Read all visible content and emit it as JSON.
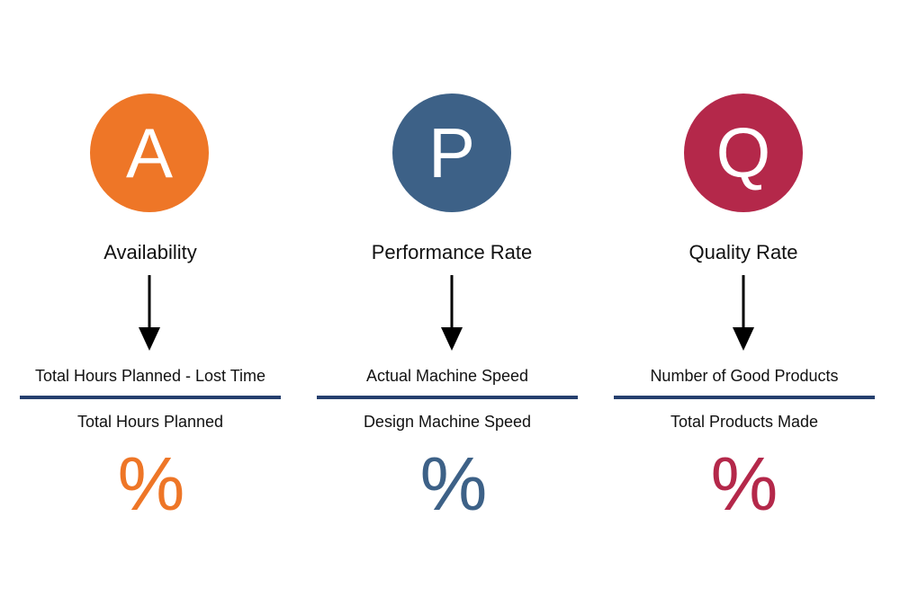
{
  "metrics": [
    {
      "letter": "A",
      "title": "Availability",
      "numerator": "Total Hours Planned - Lost Time",
      "denominator": "Total Hours Planned",
      "percent": "%",
      "color": "#ee7627"
    },
    {
      "letter": "P",
      "title": "Performance Rate",
      "numerator": "Actual Machine Speed",
      "denominator": "Design Machine Speed",
      "percent": "%",
      "color": "#3d6187"
    },
    {
      "letter": "Q",
      "title": "Quality Rate",
      "numerator": "Number of Good Products",
      "denominator": "Total Products Made",
      "percent": "%",
      "color": "#b4284a"
    }
  ],
  "divider_color": "#253f6e"
}
